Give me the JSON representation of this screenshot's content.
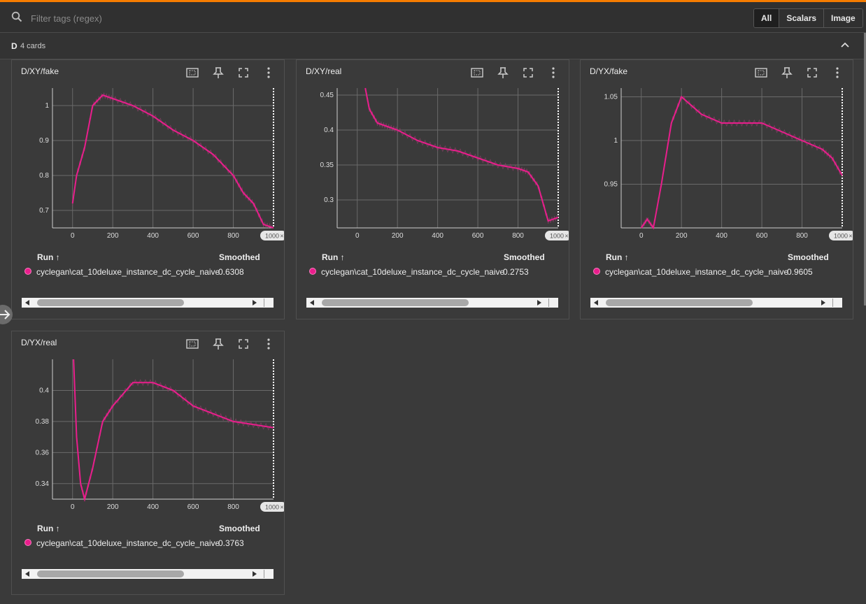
{
  "filter": {
    "placeholder": "Filter tags (regex)"
  },
  "view_tabs": [
    "All",
    "Scalars",
    "Image"
  ],
  "group": {
    "name": "D",
    "count": "4 cards"
  },
  "table": {
    "run_header": "Run ↑",
    "smoothed_header": "Smoothed"
  },
  "accent_color": "#e91e8c",
  "cards": [
    {
      "title": "D/XY/fake",
      "run": "cyclegan\\cat_10deluxe_instance_dc_cycle_naive",
      "smoothed": "0.6308"
    },
    {
      "title": "D/XY/real",
      "run": "cyclegan\\cat_10deluxe_instance_dc_cycle_naive",
      "smoothed": "0.2753"
    },
    {
      "title": "D/YX/fake",
      "run": "cyclegan\\cat_10deluxe_instance_dc_cycle_naive",
      "smoothed": "0.9605"
    },
    {
      "title": "D/YX/real",
      "run": "cyclegan\\cat_10deluxe_instance_dc_cycle_naive",
      "smoothed": "0.3763"
    }
  ],
  "chart_data": [
    {
      "type": "line",
      "title": "D/XY/fake",
      "xlim": [
        -100,
        1000
      ],
      "ylim": [
        0.65,
        1.05
      ],
      "xticks": [
        "0",
        "200",
        "400",
        "600",
        "800"
      ],
      "yticks": [
        "0.7",
        "0.8",
        "0.9",
        "1"
      ],
      "step_marker": "1000",
      "series": [
        {
          "x": [
            0,
            20,
            60,
            100,
            150,
            200,
            300,
            400,
            500,
            600,
            700,
            800,
            850,
            900,
            950,
            1000
          ],
          "y": [
            0.72,
            0.8,
            0.88,
            1.0,
            1.03,
            1.02,
            1.0,
            0.97,
            0.93,
            0.9,
            0.86,
            0.8,
            0.75,
            0.72,
            0.66,
            0.63
          ]
        }
      ]
    },
    {
      "type": "line",
      "title": "D/XY/real",
      "xlim": [
        -100,
        1000
      ],
      "ylim": [
        0.26,
        0.46
      ],
      "xticks": [
        "0",
        "200",
        "400",
        "600",
        "800"
      ],
      "yticks": [
        "0.3",
        "0.35",
        "0.4",
        "0.45"
      ],
      "step_marker": "1000",
      "series": [
        {
          "x": [
            40,
            60,
            100,
            150,
            200,
            300,
            400,
            500,
            600,
            700,
            800,
            850,
            900,
            950,
            1000
          ],
          "y": [
            0.46,
            0.43,
            0.41,
            0.405,
            0.4,
            0.385,
            0.375,
            0.37,
            0.36,
            0.35,
            0.345,
            0.34,
            0.32,
            0.27,
            0.275
          ]
        }
      ]
    },
    {
      "type": "line",
      "title": "D/YX/fake",
      "xlim": [
        -100,
        1000
      ],
      "ylim": [
        0.9,
        1.06
      ],
      "xticks": [
        "0",
        "200",
        "400",
        "600",
        "800"
      ],
      "yticks": [
        "0.95",
        "1",
        "1.05"
      ],
      "step_marker": "1000",
      "series": [
        {
          "x": [
            0,
            30,
            60,
            100,
            150,
            200,
            300,
            400,
            500,
            600,
            700,
            800,
            900,
            950,
            1000
          ],
          "y": [
            0.9,
            0.91,
            0.9,
            0.95,
            1.02,
            1.05,
            1.03,
            1.02,
            1.02,
            1.02,
            1.01,
            1.0,
            0.99,
            0.98,
            0.96
          ]
        }
      ]
    },
    {
      "type": "line",
      "title": "D/YX/real",
      "xlim": [
        -100,
        1000
      ],
      "ylim": [
        0.33,
        0.42
      ],
      "xticks": [
        "0",
        "200",
        "400",
        "600",
        "800"
      ],
      "yticks": [
        "0.34",
        "0.36",
        "0.38",
        "0.4"
      ],
      "step_marker": "1000",
      "series": [
        {
          "x": [
            5,
            20,
            40,
            60,
            100,
            150,
            200,
            300,
            400,
            500,
            600,
            700,
            800,
            900,
            1000
          ],
          "y": [
            0.42,
            0.37,
            0.34,
            0.33,
            0.35,
            0.38,
            0.39,
            0.405,
            0.405,
            0.4,
            0.39,
            0.385,
            0.38,
            0.378,
            0.376
          ]
        }
      ]
    }
  ]
}
